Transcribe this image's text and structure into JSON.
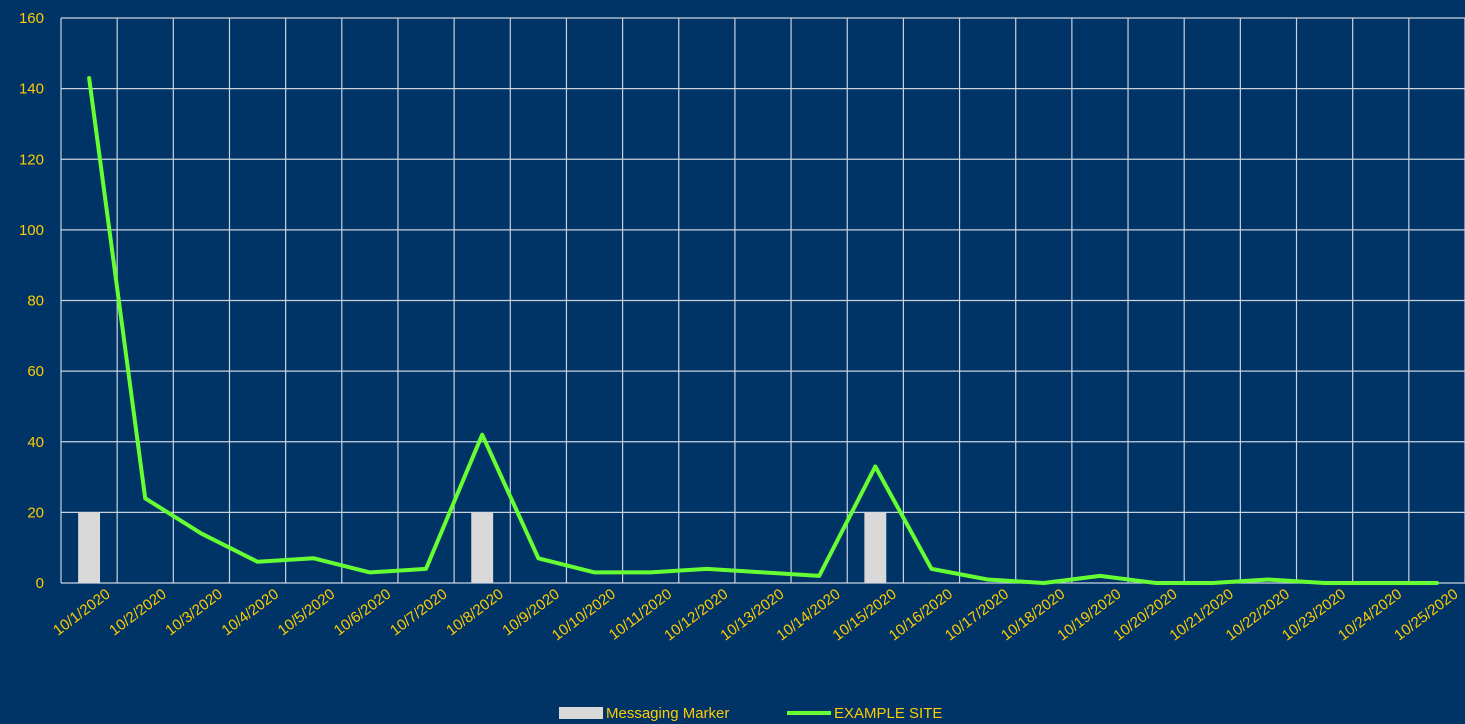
{
  "chart_data": {
    "type": "bar+line",
    "title": "",
    "xlabel": "",
    "ylabel": "",
    "ylim": [
      0,
      160
    ],
    "y_ticks": [
      0,
      20,
      40,
      60,
      80,
      100,
      120,
      140,
      160
    ],
    "grid": true,
    "legend_position": "bottom",
    "categories": [
      "10/1/2020",
      "10/2/2020",
      "10/3/2020",
      "10/4/2020",
      "10/5/2020",
      "10/6/2020",
      "10/7/2020",
      "10/8/2020",
      "10/9/2020",
      "10/10/2020",
      "10/11/2020",
      "10/12/2020",
      "10/13/2020",
      "10/14/2020",
      "10/15/2020",
      "10/16/2020",
      "10/17/2020",
      "10/18/2020",
      "10/19/2020",
      "10/20/2020",
      "10/21/2020",
      "10/22/2020",
      "10/23/2020",
      "10/24/2020",
      "10/25/2020"
    ],
    "series": [
      {
        "name": "Messaging Marker",
        "kind": "bar",
        "color": "#d9d9d9",
        "values": [
          20,
          0,
          0,
          0,
          0,
          0,
          0,
          20,
          0,
          0,
          0,
          0,
          0,
          0,
          20,
          0,
          0,
          0,
          0,
          0,
          0,
          0,
          0,
          0,
          0
        ]
      },
      {
        "name": "EXAMPLE SITE",
        "kind": "line",
        "color": "#66ff33",
        "values": [
          143,
          24,
          14,
          6,
          7,
          3,
          4,
          42,
          7,
          3,
          3,
          4,
          3,
          2,
          33,
          4,
          1,
          0,
          2,
          0,
          0,
          1,
          0,
          0,
          0
        ]
      }
    ],
    "colors": {
      "background": "#003366",
      "grid": "#c9d3df",
      "tick_text": "#ffcc00",
      "legend_text": "#ffcc00"
    }
  }
}
